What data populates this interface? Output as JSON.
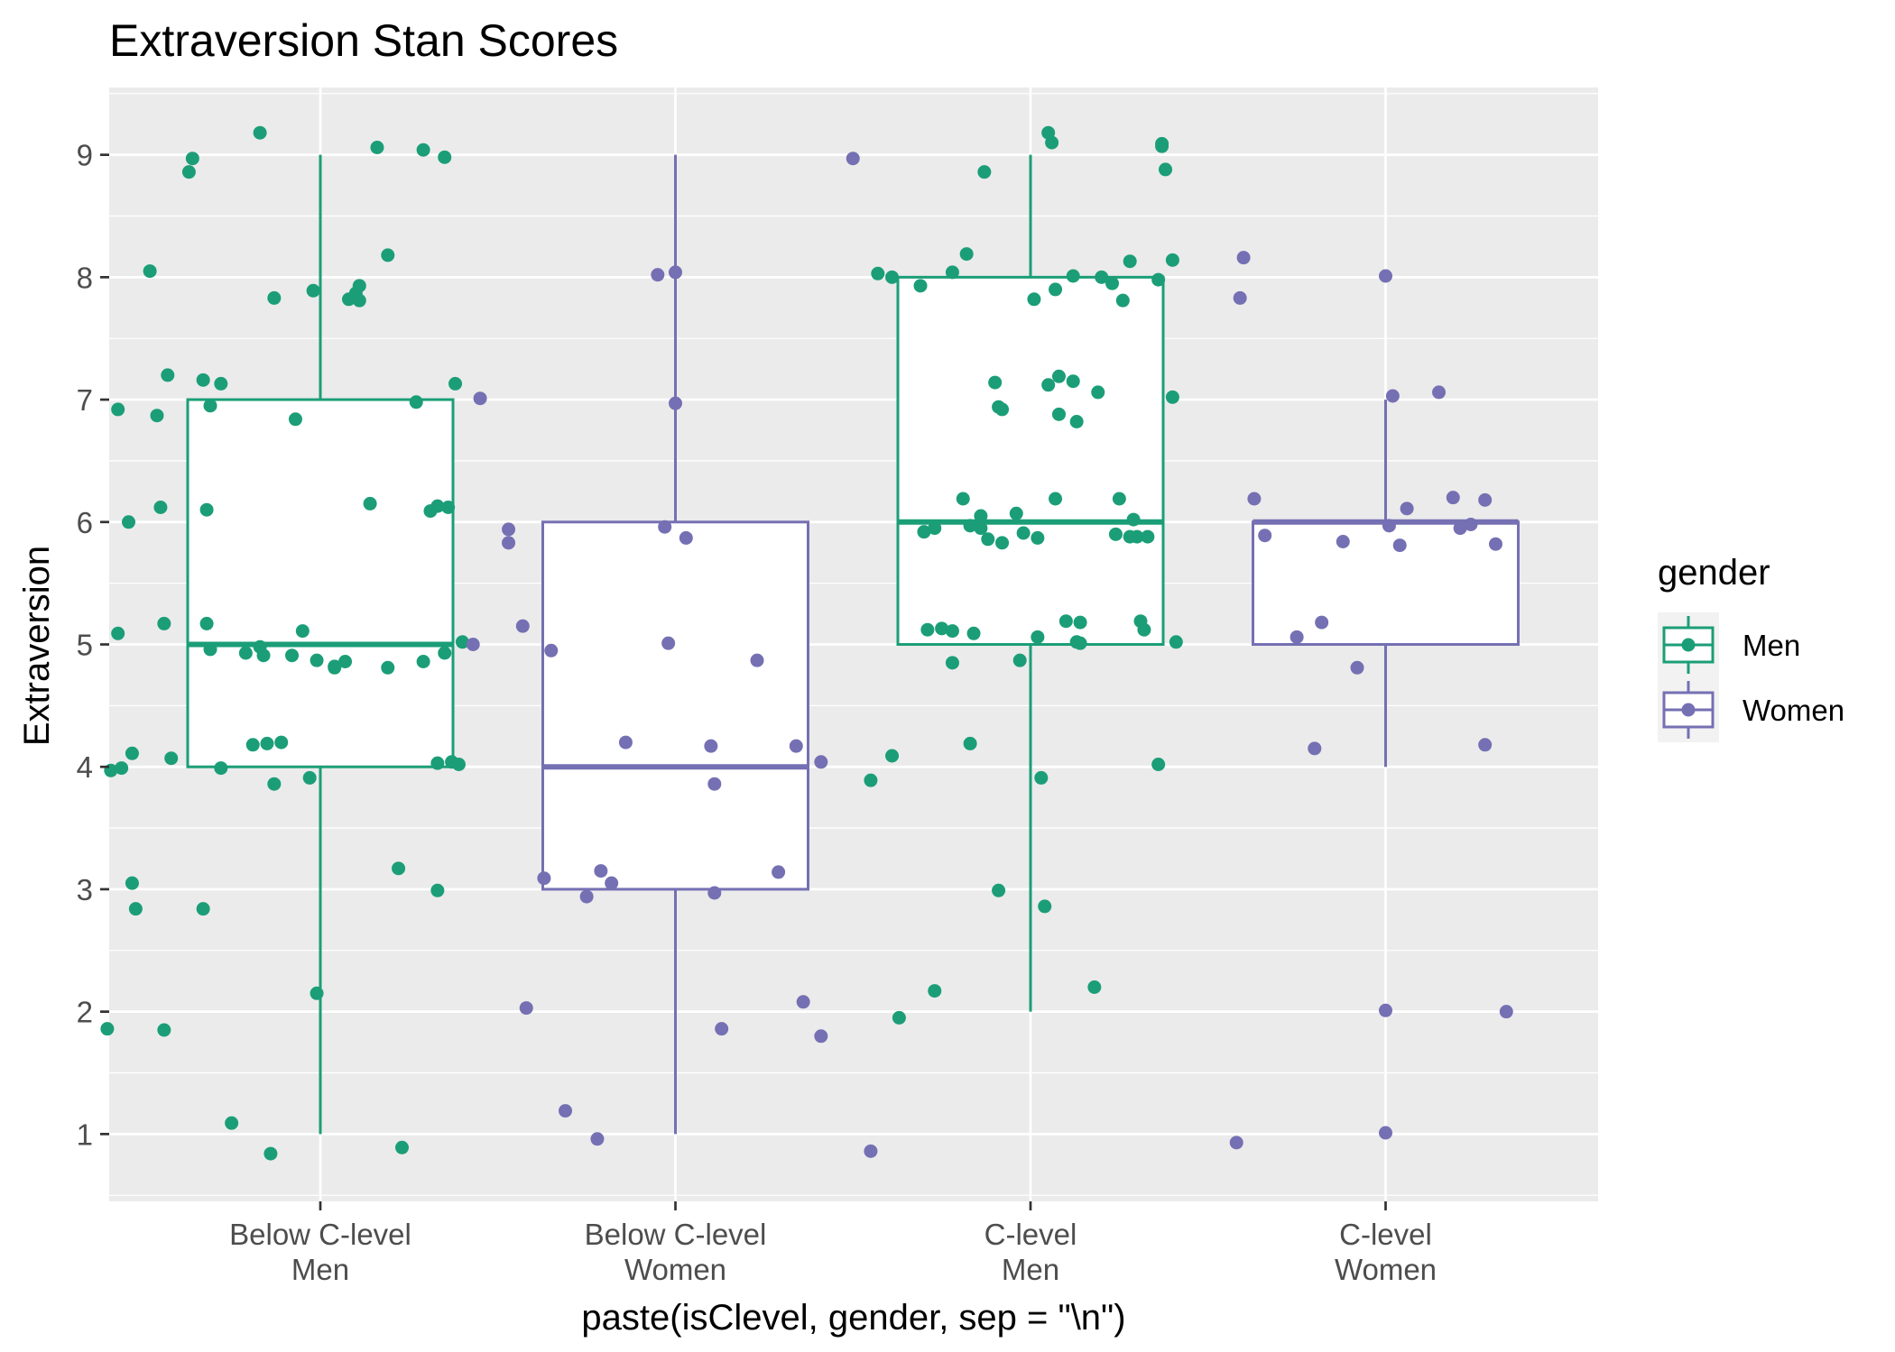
{
  "chart_data": {
    "type": "box",
    "title": "Extraversion Stan Scores",
    "xlabel": "paste(isClevel, gender, sep = \"\\n\")",
    "ylabel": "Extraversion",
    "ylim": [
      0.45,
      9.55
    ],
    "yticks": [
      1,
      2,
      3,
      4,
      5,
      6,
      7,
      8,
      9
    ],
    "grid": true,
    "legend": {
      "title": "gender",
      "position": "right",
      "entries": [
        {
          "label": "Men",
          "color": "#1b9e77"
        },
        {
          "label": "Women",
          "color": "#7570b3"
        }
      ]
    },
    "categories": [
      {
        "line1": "Below C-level",
        "line2": "Men",
        "gender": "Men"
      },
      {
        "line1": "Below C-level",
        "line2": "Women",
        "gender": "Women"
      },
      {
        "line1": "C-level",
        "line2": "Men",
        "gender": "Men"
      },
      {
        "line1": "C-level",
        "line2": "Women",
        "gender": "Women"
      }
    ],
    "boxes": [
      {
        "lower_whisker": 1,
        "q1": 4,
        "median": 5,
        "q3": 7,
        "upper_whisker": 9
      },
      {
        "lower_whisker": 1,
        "q1": 3,
        "median": 4,
        "q3": 6,
        "upper_whisker": 9
      },
      {
        "lower_whisker": 2,
        "q1": 5,
        "median": 6,
        "q3": 8,
        "upper_whisker": 9
      },
      {
        "lower_whisker": 4,
        "q1": 5,
        "median": 6,
        "q3": 6,
        "upper_whisker": 7
      }
    ],
    "points": [
      [
        [
          0.83,
          9.18
        ],
        [
          1.16,
          9.06
        ],
        [
          1.29,
          9.04
        ],
        [
          1.35,
          8.98
        ],
        [
          0.64,
          8.97
        ],
        [
          0.63,
          8.86
        ],
        [
          0.52,
          8.05
        ],
        [
          1.19,
          8.18
        ],
        [
          1.11,
          7.93
        ],
        [
          0.98,
          7.89
        ],
        [
          1.1,
          7.87
        ],
        [
          0.87,
          7.83
        ],
        [
          1.08,
          7.82
        ],
        [
          1.11,
          7.81
        ],
        [
          0.57,
          7.2
        ],
        [
          1.38,
          7.13
        ],
        [
          0.67,
          7.16
        ],
        [
          0.72,
          7.13
        ],
        [
          1.27,
          6.98
        ],
        [
          0.69,
          6.95
        ],
        [
          0.43,
          6.92
        ],
        [
          0.54,
          6.87
        ],
        [
          0.93,
          6.84
        ],
        [
          0.46,
          6.0
        ],
        [
          0.55,
          6.12
        ],
        [
          0.68,
          6.1
        ],
        [
          1.14,
          6.15
        ],
        [
          1.33,
          6.13
        ],
        [
          1.36,
          6.12
        ],
        [
          1.31,
          6.09
        ],
        [
          0.43,
          5.09
        ],
        [
          0.56,
          5.17
        ],
        [
          0.68,
          5.17
        ],
        [
          0.95,
          5.11
        ],
        [
          0.69,
          4.96
        ],
        [
          0.83,
          4.98
        ],
        [
          0.79,
          4.93
        ],
        [
          0.84,
          4.91
        ],
        [
          0.92,
          4.91
        ],
        [
          0.99,
          4.87
        ],
        [
          1.07,
          4.86
        ],
        [
          1.04,
          4.82
        ],
        [
          1.04,
          4.81
        ],
        [
          1.19,
          4.81
        ],
        [
          1.29,
          4.86
        ],
        [
          1.35,
          4.93
        ],
        [
          1.4,
          5.02
        ],
        [
          0.47,
          4.11
        ],
        [
          0.58,
          4.07
        ],
        [
          0.81,
          4.18
        ],
        [
          0.85,
          4.19
        ],
        [
          0.89,
          4.2
        ],
        [
          0.41,
          3.97
        ],
        [
          0.44,
          3.99
        ],
        [
          0.72,
          3.99
        ],
        [
          0.87,
          3.86
        ],
        [
          0.97,
          3.91
        ],
        [
          1.33,
          4.03
        ],
        [
          1.37,
          4.04
        ],
        [
          1.39,
          4.02
        ],
        [
          0.47,
          3.05
        ],
        [
          0.48,
          2.84
        ],
        [
          0.67,
          2.84
        ],
        [
          1.22,
          3.17
        ],
        [
          1.33,
          2.99
        ],
        [
          0.4,
          1.86
        ],
        [
          0.56,
          1.85
        ],
        [
          0.99,
          2.15
        ],
        [
          0.75,
          1.09
        ],
        [
          0.86,
          0.84
        ],
        [
          1.23,
          0.89
        ]
      ],
      [
        [
          2.5,
          8.97
        ],
        [
          1.95,
          8.02
        ],
        [
          2.0,
          8.04
        ],
        [
          1.45,
          7.01
        ],
        [
          2.0,
          6.97
        ],
        [
          1.53,
          5.94
        ],
        [
          1.53,
          5.83
        ],
        [
          1.97,
          5.96
        ],
        [
          2.03,
          5.87
        ],
        [
          1.57,
          5.15
        ],
        [
          1.65,
          4.95
        ],
        [
          1.98,
          5.01
        ],
        [
          2.23,
          4.87
        ],
        [
          1.43,
          5.0
        ],
        [
          1.86,
          4.2
        ],
        [
          2.1,
          4.17
        ],
        [
          2.34,
          4.17
        ],
        [
          2.41,
          4.04
        ],
        [
          2.11,
          3.86
        ],
        [
          1.63,
          3.09
        ],
        [
          1.79,
          3.15
        ],
        [
          1.82,
          3.05
        ],
        [
          1.75,
          2.94
        ],
        [
          2.11,
          2.97
        ],
        [
          2.29,
          3.14
        ],
        [
          2.36,
          2.08
        ],
        [
          2.41,
          1.8
        ],
        [
          2.13,
          1.86
        ],
        [
          1.58,
          2.03
        ],
        [
          1.69,
          1.19
        ],
        [
          1.78,
          0.96
        ],
        [
          2.55,
          0.86
        ]
      ],
      [
        [
          3.05,
          9.18
        ],
        [
          3.06,
          9.1
        ],
        [
          3.37,
          9.09
        ],
        [
          3.37,
          9.07
        ],
        [
          2.87,
          8.86
        ],
        [
          3.38,
          8.88
        ],
        [
          3.4,
          8.14
        ],
        [
          2.82,
          8.19
        ],
        [
          3.28,
          8.13
        ],
        [
          2.57,
          8.03
        ],
        [
          2.78,
          8.04
        ],
        [
          2.61,
          8.0
        ],
        [
          2.69,
          7.93
        ],
        [
          3.12,
          8.01
        ],
        [
          3.2,
          8.0
        ],
        [
          3.23,
          7.95
        ],
        [
          3.36,
          7.98
        ],
        [
          3.07,
          7.9
        ],
        [
          3.01,
          7.82
        ],
        [
          3.26,
          7.81
        ],
        [
          2.9,
          7.14
        ],
        [
          3.08,
          7.19
        ],
        [
          3.12,
          7.15
        ],
        [
          3.05,
          7.12
        ],
        [
          3.19,
          7.06
        ],
        [
          3.4,
          7.02
        ],
        [
          2.91,
          6.94
        ],
        [
          2.92,
          6.92
        ],
        [
          3.08,
          6.88
        ],
        [
          3.13,
          6.82
        ],
        [
          2.81,
          6.19
        ],
        [
          3.07,
          6.19
        ],
        [
          3.25,
          6.19
        ],
        [
          2.86,
          6.05
        ],
        [
          2.96,
          6.07
        ],
        [
          2.7,
          5.92
        ],
        [
          2.73,
          5.95
        ],
        [
          2.86,
          5.95
        ],
        [
          2.83,
          5.97
        ],
        [
          2.88,
          5.86
        ],
        [
          2.92,
          5.83
        ],
        [
          2.98,
          5.91
        ],
        [
          3.02,
          5.87
        ],
        [
          3.24,
          5.9
        ],
        [
          3.28,
          5.88
        ],
        [
          3.3,
          5.88
        ],
        [
          3.29,
          6.02
        ],
        [
          3.33,
          5.88
        ],
        [
          2.71,
          5.12
        ],
        [
          2.75,
          5.13
        ],
        [
          2.78,
          5.11
        ],
        [
          2.84,
          5.09
        ],
        [
          3.02,
          5.06
        ],
        [
          3.1,
          5.19
        ],
        [
          3.14,
          5.18
        ],
        [
          3.13,
          5.02
        ],
        [
          3.14,
          5.01
        ],
        [
          3.31,
          5.19
        ],
        [
          3.32,
          5.12
        ],
        [
          3.41,
          5.02
        ],
        [
          2.78,
          4.85
        ],
        [
          2.97,
          4.87
        ],
        [
          2.55,
          3.89
        ],
        [
          2.61,
          4.09
        ],
        [
          2.83,
          4.19
        ],
        [
          3.03,
          3.91
        ],
        [
          3.36,
          4.02
        ],
        [
          2.91,
          2.99
        ],
        [
          3.04,
          2.86
        ],
        [
          2.63,
          1.95
        ],
        [
          2.73,
          2.17
        ],
        [
          3.18,
          2.2
        ]
      ],
      [
        [
          3.6,
          8.16
        ],
        [
          3.59,
          7.83
        ],
        [
          4.0,
          8.01
        ],
        [
          3.63,
          6.19
        ],
        [
          3.66,
          5.89
        ],
        [
          4.02,
          7.03
        ],
        [
          4.15,
          7.06
        ],
        [
          3.88,
          5.84
        ],
        [
          4.01,
          5.97
        ],
        [
          4.04,
          5.81
        ],
        [
          4.06,
          6.11
        ],
        [
          4.19,
          6.2
        ],
        [
          4.28,
          6.18
        ],
        [
          4.24,
          5.98
        ],
        [
          4.21,
          5.95
        ],
        [
          4.31,
          5.82
        ],
        [
          3.75,
          5.06
        ],
        [
          3.82,
          5.18
        ],
        [
          3.92,
          4.81
        ],
        [
          3.8,
          4.15
        ],
        [
          4.28,
          4.18
        ],
        [
          4.0,
          2.01
        ],
        [
          4.34,
          2.0
        ],
        [
          3.58,
          0.93
        ],
        [
          4.0,
          1.01
        ]
      ]
    ]
  }
}
